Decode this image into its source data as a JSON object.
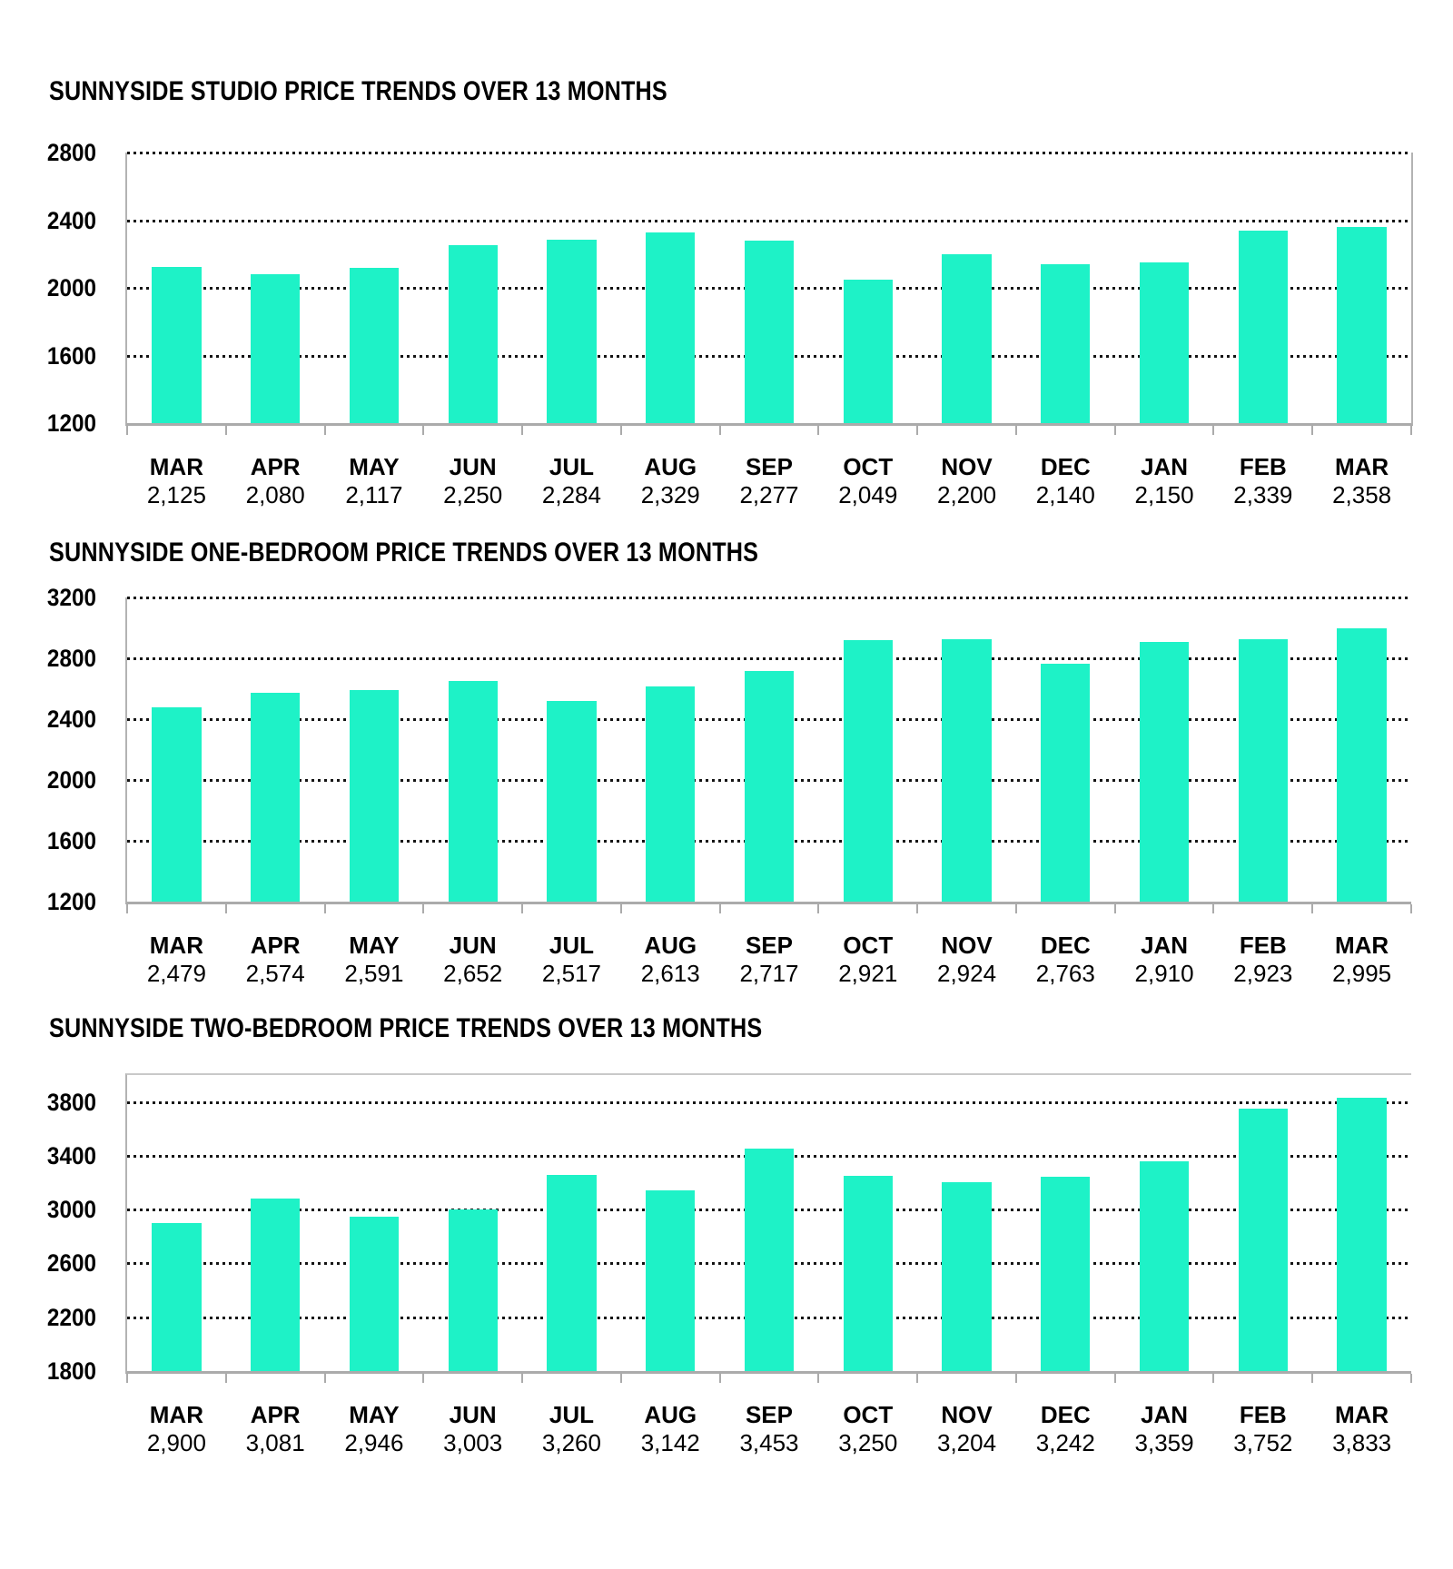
{
  "colors": {
    "bar": "#1ef2c7",
    "gridline": "#141414",
    "axis": "#ababab",
    "text": "#000000"
  },
  "chart_data": [
    {
      "type": "bar",
      "title": "SUNNYSIDE STUDIO PRICE TRENDS OVER 13 MONTHS",
      "categories": [
        "MAR",
        "APR",
        "MAY",
        "JUN",
        "JUL",
        "AUG",
        "SEP",
        "OCT",
        "NOV",
        "DEC",
        "JAN",
        "FEB",
        "MAR"
      ],
      "values": [
        2125,
        2080,
        2117,
        2250,
        2284,
        2329,
        2277,
        2049,
        2200,
        2140,
        2150,
        2339,
        2358
      ],
      "value_labels": [
        "2,125",
        "2,080",
        "2,117",
        "2,250",
        "2,284",
        "2,329",
        "2,277",
        "2,049",
        "2,200",
        "2,140",
        "2,150",
        "2,339",
        "2,358"
      ],
      "xlabel": "",
      "ylabel": "",
      "ylim": [
        1200,
        2800
      ],
      "yticks": [
        2800,
        2400,
        2000,
        1600,
        1200
      ],
      "grid": "dotted-horizontal",
      "legend": "none"
    },
    {
      "type": "bar",
      "title": "SUNNYSIDE ONE-BEDROOM PRICE TRENDS OVER 13 MONTHS",
      "categories": [
        "MAR",
        "APR",
        "MAY",
        "JUN",
        "JUL",
        "AUG",
        "SEP",
        "OCT",
        "NOV",
        "DEC",
        "JAN",
        "FEB",
        "MAR"
      ],
      "values": [
        2479,
        2574,
        2591,
        2652,
        2517,
        2613,
        2717,
        2921,
        2924,
        2763,
        2910,
        2923,
        2995
      ],
      "value_labels": [
        "2,479",
        "2,574",
        "2,591",
        "2,652",
        "2,517",
        "2,613",
        "2,717",
        "2,921",
        "2,924",
        "2,763",
        "2,910",
        "2,923",
        "2,995"
      ],
      "xlabel": "",
      "ylabel": "",
      "ylim": [
        1200,
        3200
      ],
      "yticks": [
        3200,
        2800,
        2400,
        2000,
        1600,
        1200
      ],
      "grid": "dotted-horizontal",
      "legend": "none"
    },
    {
      "type": "bar",
      "title": "SUNNYSIDE TWO-BEDROOM PRICE TRENDS OVER 13 MONTHS",
      "categories": [
        "MAR",
        "APR",
        "MAY",
        "JUN",
        "JUL",
        "AUG",
        "SEP",
        "OCT",
        "NOV",
        "DEC",
        "JAN",
        "FEB",
        "MAR"
      ],
      "values": [
        2900,
        3081,
        2946,
        3003,
        3260,
        3142,
        3453,
        3250,
        3204,
        3242,
        3359,
        3752,
        3833
      ],
      "value_labels": [
        "2,900",
        "3,081",
        "2,946",
        "3,003",
        "3,260",
        "3,142",
        "3,453",
        "3,250",
        "3,204",
        "3,242",
        "3,359",
        "3,752",
        "3,833"
      ],
      "xlabel": "",
      "ylabel": "",
      "ylim": [
        1800,
        4000
      ],
      "yticks": [
        3800,
        3400,
        3000,
        2600,
        2200,
        1800
      ],
      "grid": "dotted-horizontal",
      "legend": "none"
    }
  ]
}
